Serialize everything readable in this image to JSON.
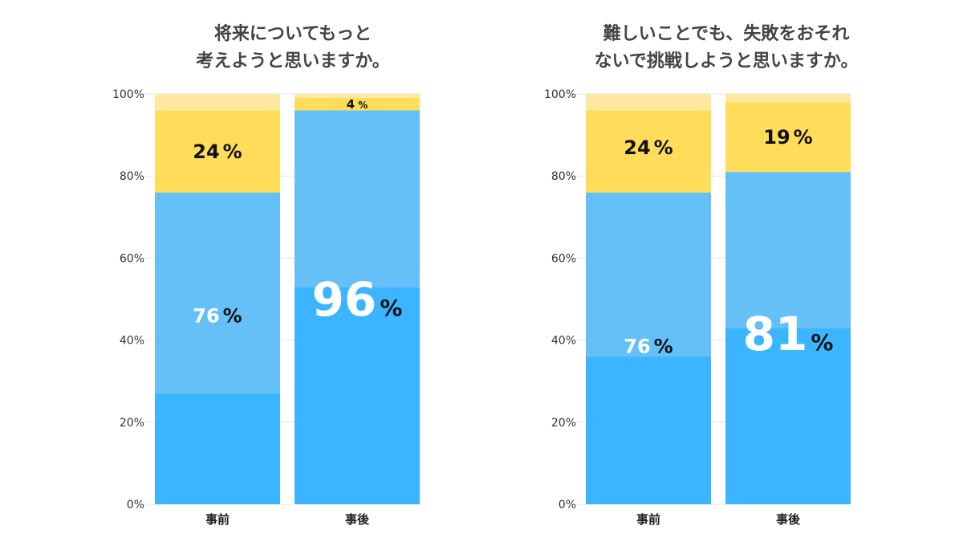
{
  "chart_data": [
    {
      "type": "bar",
      "stacked": true,
      "title_lines": [
        "将来についてもっと",
        "考えようと思いますか。"
      ],
      "categories": [
        "事前",
        "事後"
      ],
      "ylim": [
        0,
        100
      ],
      "yticks": [
        "0%",
        "20%",
        "40%",
        "60%",
        "80%",
        "100%"
      ],
      "segments": [
        [
          {
            "value": 27,
            "color": "#3BB5FF"
          },
          {
            "value": 49,
            "color": "#66C0F8"
          },
          {
            "value": 20,
            "color": "#FFDC5A"
          },
          {
            "value": 4,
            "color": "#FFE9A0"
          }
        ],
        [
          {
            "value": 53,
            "color": "#3BB5FF"
          },
          {
            "value": 43,
            "color": "#66C0F8"
          },
          {
            "value": 3,
            "color": "#FFDC5A"
          },
          {
            "value": 1,
            "color": "#FFE9A0"
          }
        ]
      ],
      "labels": [
        {
          "bar": 0,
          "number": "24",
          "unit": "%",
          "y": 86,
          "size": "medium",
          "color": "#111111"
        },
        {
          "bar": 0,
          "number": "76",
          "unit": "%",
          "y": 46,
          "size": "medium",
          "color": "#ffffff"
        },
        {
          "bar": 1,
          "number": "4",
          "unit": "%",
          "y": 97.5,
          "size": "small",
          "color": "#111111"
        },
        {
          "bar": 1,
          "number": "96",
          "unit": "%",
          "y": 50,
          "size": "large",
          "color": "#ffffff"
        }
      ]
    },
    {
      "type": "bar",
      "stacked": true,
      "title_lines": [
        "難しいことでも、失敗をおそれ",
        "ないで挑戦しようと思いますか。"
      ],
      "categories": [
        "事前",
        "事後"
      ],
      "ylim": [
        0,
        100
      ],
      "yticks": [
        "0%",
        "20%",
        "40%",
        "60%",
        "80%",
        "100%"
      ],
      "segments": [
        [
          {
            "value": 36,
            "color": "#3BB5FF"
          },
          {
            "value": 40,
            "color": "#66C0F8"
          },
          {
            "value": 20,
            "color": "#FFDC5A"
          },
          {
            "value": 4,
            "color": "#FFE9A0"
          }
        ],
        [
          {
            "value": 43,
            "color": "#3BB5FF"
          },
          {
            "value": 38,
            "color": "#66C0F8"
          },
          {
            "value": 17,
            "color": "#FFDC5A"
          },
          {
            "value": 2,
            "color": "#FFE9A0"
          }
        ]
      ],
      "labels": [
        {
          "bar": 0,
          "number": "24",
          "unit": "%",
          "y": 87,
          "size": "medium",
          "color": "#111111"
        },
        {
          "bar": 0,
          "number": "76",
          "unit": "%",
          "y": 38.5,
          "size": "medium",
          "color": "#ffffff"
        },
        {
          "bar": 1,
          "number": "19",
          "unit": "%",
          "y": 89.5,
          "size": "medium",
          "color": "#111111"
        },
        {
          "bar": 1,
          "number": "81",
          "unit": "%",
          "y": 41.5,
          "size": "large",
          "color": "#ffffff"
        }
      ]
    }
  ]
}
